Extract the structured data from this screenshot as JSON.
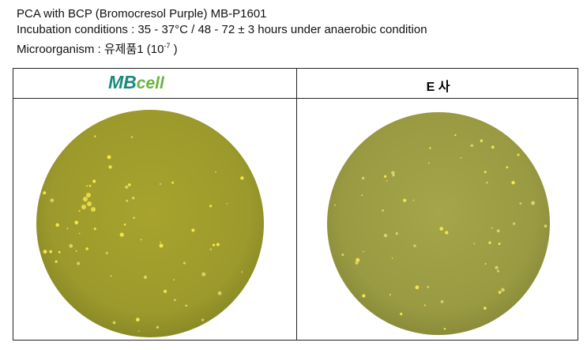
{
  "header": {
    "line1": "PCA with BCP (Bromocresol Purple) MB-P1601",
    "line2": "Incubation conditions : 35 - 37°C / 48 - 72 ± 3 hours under anaerobic condition",
    "line3": {
      "text": "Microorganism : 유제품1 (10",
      "superscript": "-7",
      "end": " )"
    }
  },
  "table": {
    "columns": [
      {
        "logo": {
          "part1": "MB",
          "part2": "cell"
        }
      },
      {
        "label": "E 사"
      }
    ]
  }
}
